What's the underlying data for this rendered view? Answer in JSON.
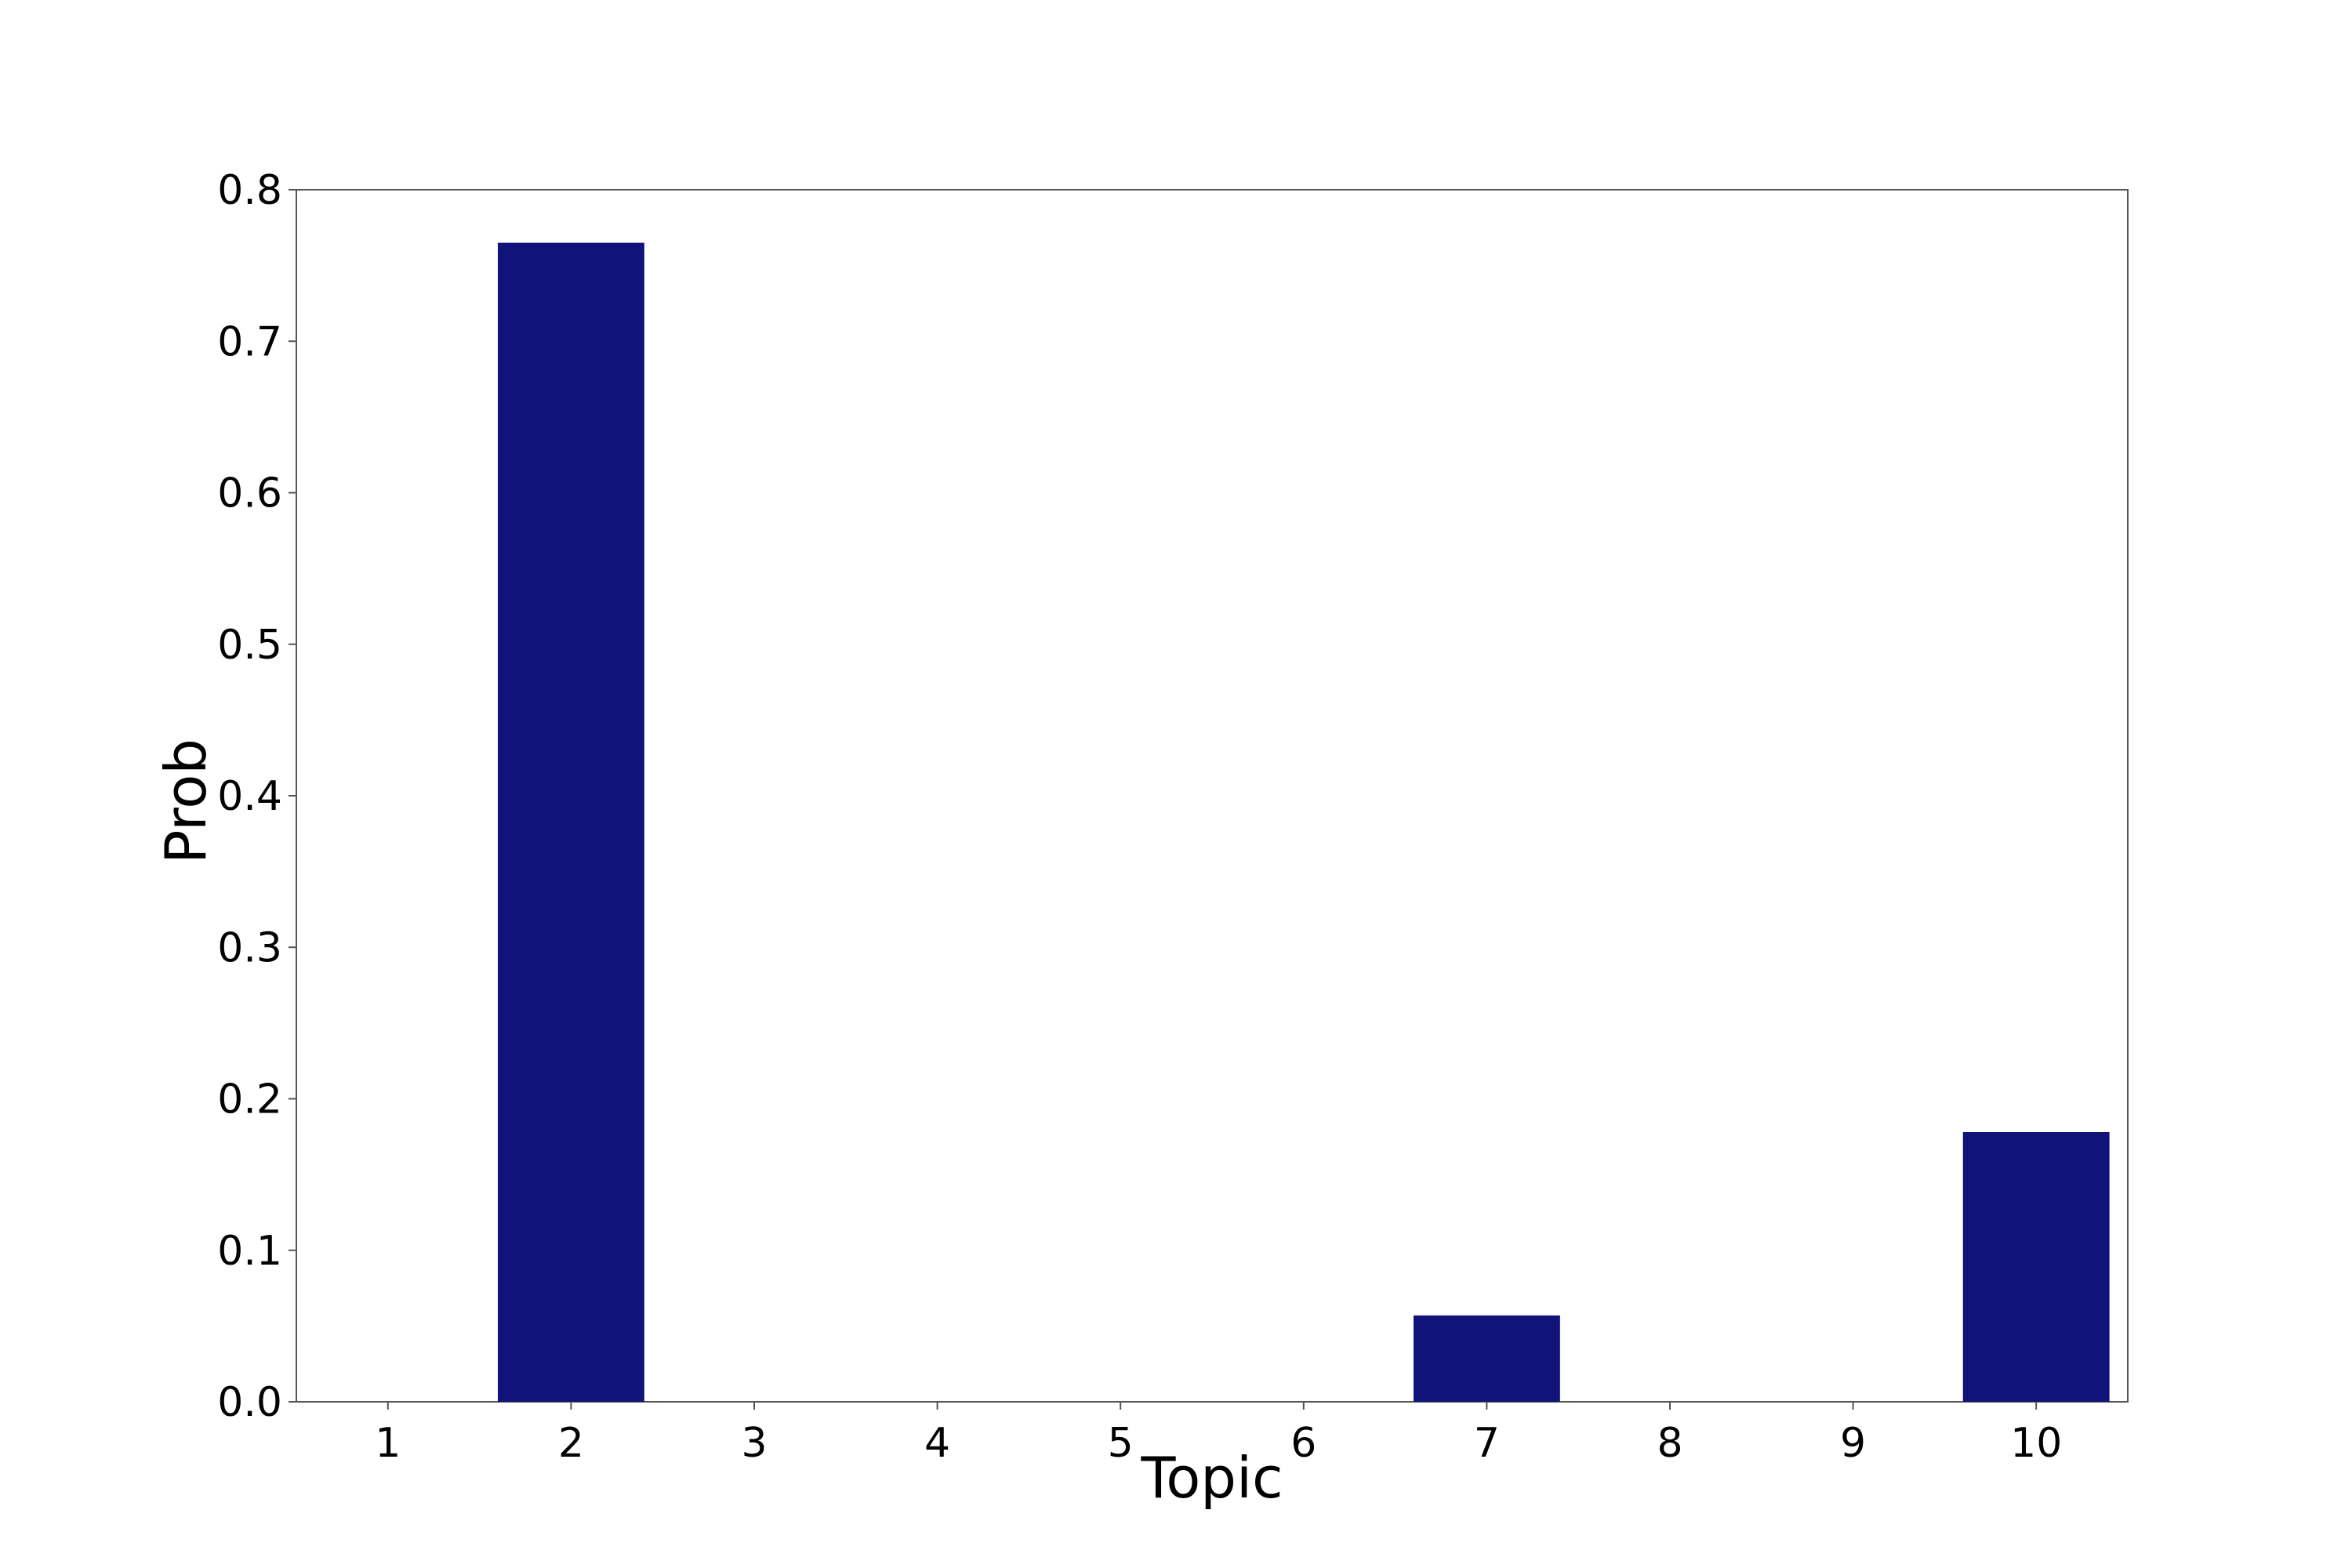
{
  "chart_data": {
    "type": "bar",
    "title": "",
    "xlabel": "Topic",
    "ylabel": "Prob",
    "categories": [
      "1",
      "2",
      "3",
      "4",
      "5",
      "6",
      "7",
      "8",
      "9",
      "10"
    ],
    "values": [
      0.0,
      0.765,
      0.0,
      0.0,
      0.0,
      0.0,
      0.057,
      0.0,
      0.0,
      0.178
    ],
    "ylim": [
      0,
      0.8
    ],
    "yticks": [
      "0.0",
      "0.1",
      "0.2",
      "0.3",
      "0.4",
      "0.5",
      "0.6",
      "0.7",
      "0.8"
    ],
    "bar_color": "#11137a",
    "grid": false,
    "legend": "none"
  }
}
